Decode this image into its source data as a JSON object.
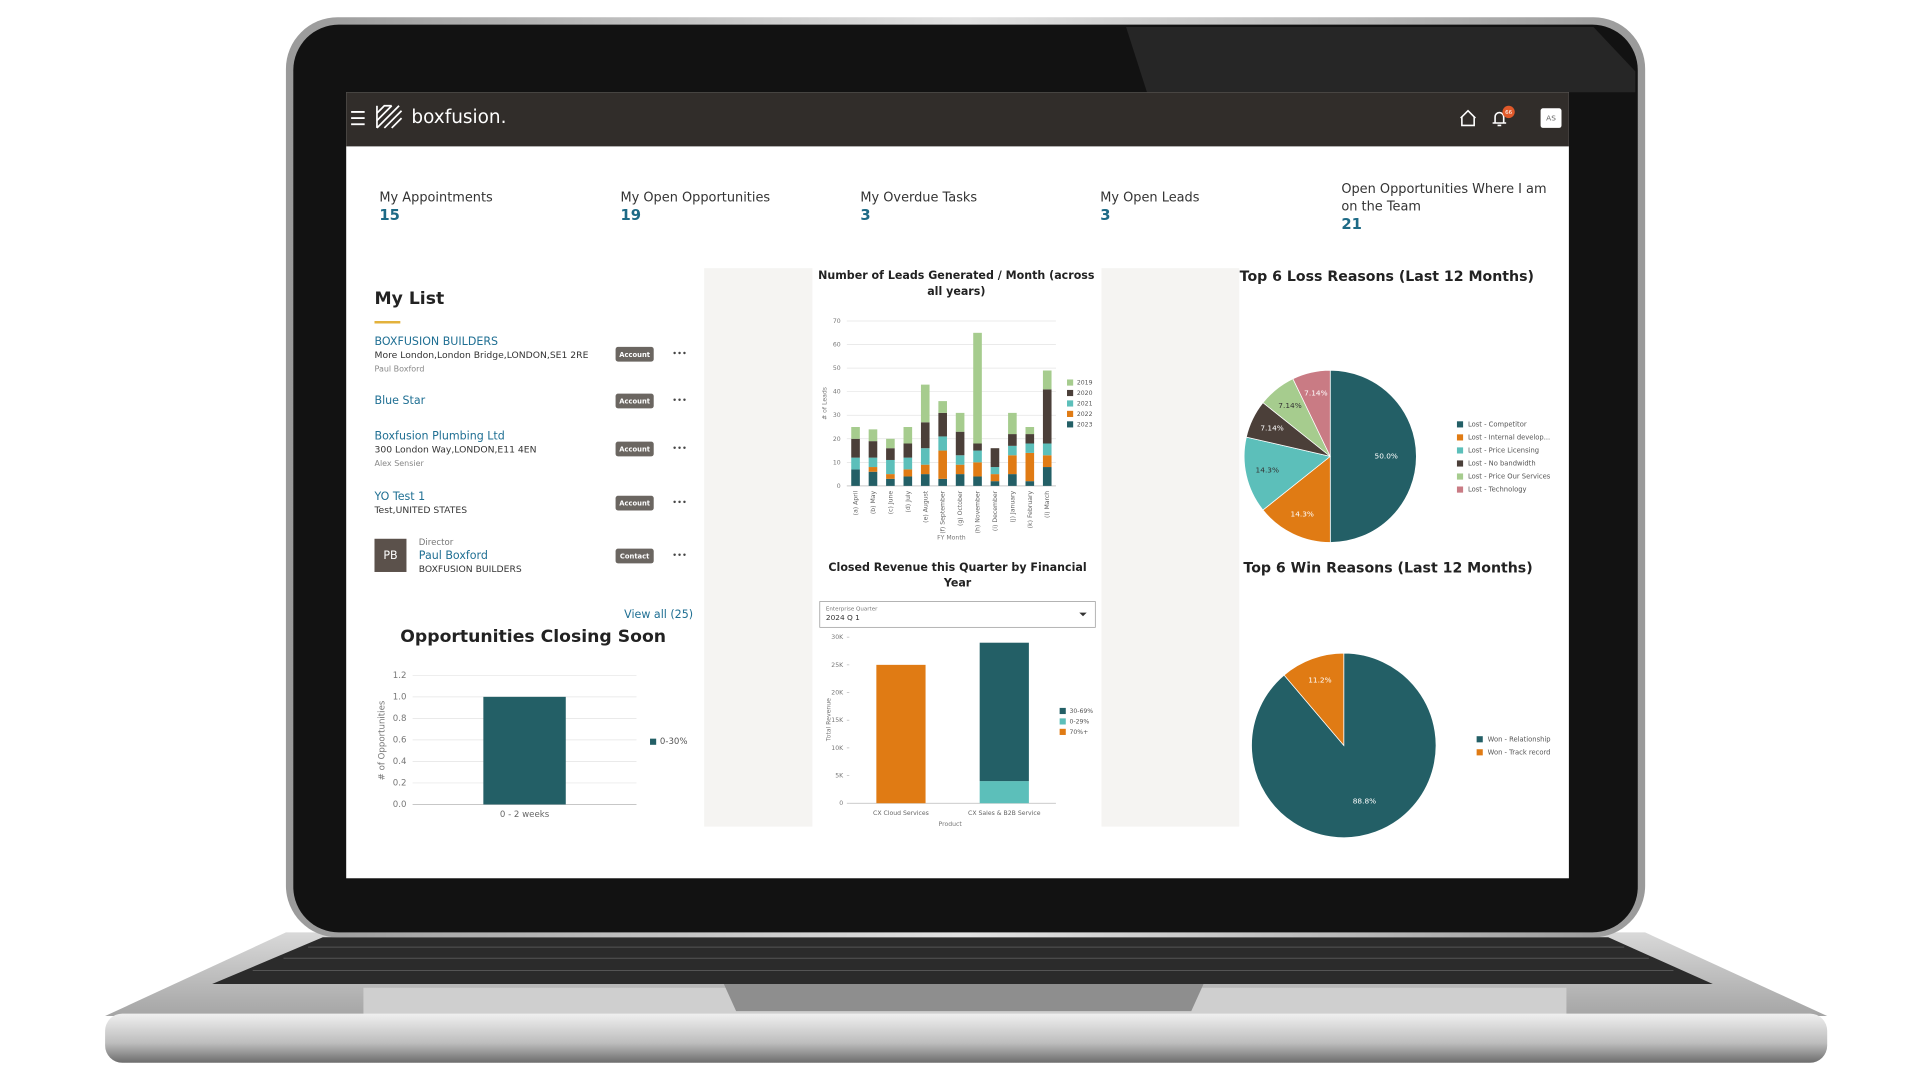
{
  "header": {
    "logo": "boxfusion.",
    "notifications": "66",
    "avatar": "AS"
  },
  "kpis": [
    {
      "label": "My Appointments",
      "value": 15
    },
    {
      "label": "My Open Opportunities",
      "value": 19
    },
    {
      "label": "My Overdue Tasks",
      "value": 3
    },
    {
      "label": "My Open Leads",
      "value": 3
    },
    {
      "label": "Open Opportunities Where I am on the Team",
      "value": 21
    }
  ],
  "my_list": {
    "title": "My List",
    "items": [
      {
        "name": "BOXFUSION BUILDERS",
        "address": "More London,London Bridge,LONDON,SE1 2RE",
        "owner": "Paul Boxford",
        "badge": "Account"
      },
      {
        "name": "Blue Star",
        "badge": "Account"
      },
      {
        "name": "Boxfusion Plumbing Ltd",
        "address": "300 London Way,LONDON,E11 4EN",
        "owner": "Alex Sensier",
        "badge": "Account"
      },
      {
        "name": "YO Test 1",
        "address": "Test,UNITED STATES",
        "badge": "Account"
      },
      {
        "role": "Director",
        "name": "Paul Boxford",
        "address": "BOXFUSION BUILDERS",
        "initials": "PB",
        "badge": "Contact"
      }
    ],
    "view_all": "View all (25)"
  },
  "opportunities_chart": {
    "type": "bar",
    "title": "Opportunities Closing Soon",
    "y_label": "# of Opportunities",
    "categories": [
      "0 - 2 weeks"
    ],
    "series": [
      {
        "name": "0-30%",
        "color": "#235f66",
        "values": [
          1
        ]
      }
    ],
    "ylim": [
      0,
      1.2
    ],
    "yticks": [
      {
        "value": 0,
        "label": "0.0"
      },
      0.2,
      0.4,
      0.6,
      0.8,
      {
        "value": 1,
        "label": "1.0"
      },
      1.2
    ],
    "grid": true
  },
  "leads_chart": {
    "type": "bar",
    "stacked": true,
    "title": "Number of Leads Generated / Month (across all years)",
    "x_label": "FY Month",
    "y_label": "# of Leads",
    "categories": [
      "(a) April",
      "(b) May",
      "(c) June",
      "(d) July",
      "(e) August",
      "(f) September",
      "(g) October",
      "(h) November",
      "(i) December",
      "(j) January",
      "(k) February",
      "(l) March"
    ],
    "series": [
      {
        "name": "2019",
        "color": "#a6cc8e",
        "values": [
          5,
          5,
          4,
          7,
          16,
          5,
          8,
          47,
          0,
          9,
          3,
          8
        ]
      },
      {
        "name": "2020",
        "color": "#4b3f39",
        "values": [
          8,
          7,
          5,
          6,
          11,
          10,
          10,
          3,
          8,
          5,
          4,
          23
        ]
      },
      {
        "name": "2021",
        "color": "#5cbfba",
        "values": [
          5,
          4,
          6,
          5,
          7,
          6,
          4,
          5,
          3,
          4,
          4,
          5
        ]
      },
      {
        "name": "2022",
        "color": "#e07b14",
        "values": [
          0,
          2,
          2,
          3,
          4,
          12,
          4,
          6,
          3,
          8,
          12,
          5
        ]
      },
      {
        "name": "2023",
        "color": "#235f66",
        "values": [
          7,
          6,
          3,
          4,
          5,
          3,
          5,
          4,
          2,
          5,
          2,
          8
        ]
      }
    ],
    "ylim": [
      0,
      70
    ],
    "yticks": [
      0,
      10,
      20,
      30,
      40,
      50,
      60,
      70
    ],
    "grid": true
  },
  "revenue_chart": {
    "type": "bar",
    "stacked": true,
    "title": "Closed Revenue this Quarter by Financial Year",
    "filter": {
      "label": "Enterprise Quarter",
      "value": "2024 Q 1"
    },
    "x_label": "Product",
    "y_label": "Total Revenue",
    "categories": [
      "CX Cloud Services",
      "CX Sales & B2B Service"
    ],
    "series": [
      {
        "name": "30-69%",
        "color": "#235f66",
        "values": [
          0,
          25000
        ]
      },
      {
        "name": "0-29%",
        "color": "#5cbfba",
        "values": [
          0,
          4000
        ]
      },
      {
        "name": "70%+",
        "color": "#e07b14",
        "values": [
          25000,
          0
        ]
      }
    ],
    "ylim": [
      0,
      30000
    ],
    "yticks": [
      0,
      {
        "value": 5000,
        "label": "5K"
      },
      {
        "value": 10000,
        "label": "10K"
      },
      {
        "value": 15000,
        "label": "15K"
      },
      {
        "value": 20000,
        "label": "20K"
      },
      {
        "value": 25000,
        "label": "25K"
      },
      {
        "value": 30000,
        "label": "30K"
      }
    ],
    "grid": false
  },
  "loss_pie": {
    "type": "pie",
    "title": "Top 6 Loss Reasons (Last 12 Months)",
    "labels": [
      "Lost - Competitor",
      "Lost - Internal develop...",
      "Lost - Price Licensing",
      "Lost - No bandwidth",
      "Lost - Price Our Services",
      "Lost - Technology"
    ],
    "values": [
      50.0,
      14.3,
      14.3,
      7.14,
      7.14,
      7.14
    ],
    "value_labels": [
      "50.0%",
      "14.3%",
      "14.3%",
      "7.14%",
      "7.14%",
      "7.14%"
    ],
    "colors": [
      "#235f66",
      "#e07b14",
      "#5cbfba",
      "#4b3f39",
      "#a6cc8e",
      "#c97b84"
    ]
  },
  "win_pie": {
    "type": "pie",
    "title": "Top 6 Win Reasons (Last 12 Months)",
    "labels": [
      "Won - Relationship",
      "Won - Track record"
    ],
    "values": [
      88.8,
      11.2
    ],
    "value_labels": [
      "88.8%",
      "11.2%"
    ],
    "colors": [
      "#235f66",
      "#e07b14"
    ]
  }
}
